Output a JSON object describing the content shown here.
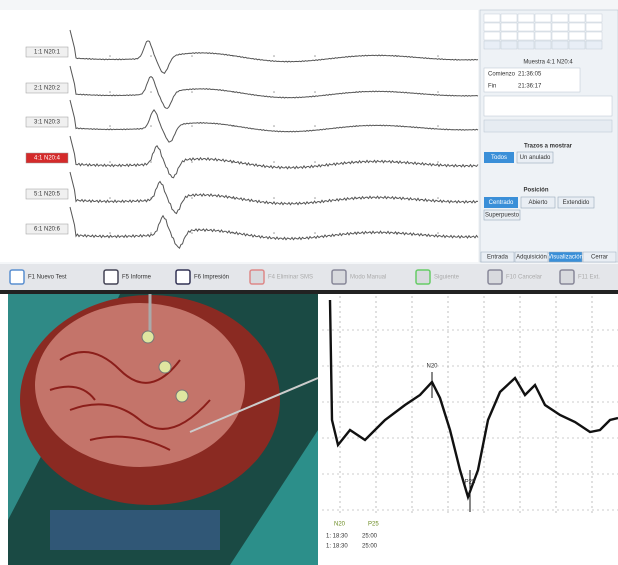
{
  "monitor": {
    "channels": [
      "1:1 N20:1",
      "2:1 N20:2",
      "3:1 N20:3",
      "4:1 N20:4",
      "5:1 N20:5",
      "6:1 N20:6"
    ],
    "toolbar": [
      "F1 Nuevo Test",
      "F5 Informe",
      "F6 Impresión",
      "F4 Eliminar SMS",
      "Modo Manual",
      "Siguiente",
      "F10 Cancelar",
      "F11 Ext."
    ],
    "side_panel": {
      "sample": "Muestra 4:1 N20:4",
      "start_label": "Comienzo",
      "start": "21:36:05",
      "end_label": "Fin",
      "end": "21:36:17",
      "traces_title": "Trazos a mostrar",
      "traces_all": "Todos",
      "traces_one": "Un anulado",
      "position_title": "Posición",
      "pos_centered": "Centrado",
      "pos_open": "Abierto",
      "pos_extended": "Extendido",
      "pos_overlap": "Superpuesto",
      "tabs": [
        "Entrada",
        "Adquisición",
        "Visualización",
        "Cerrar"
      ]
    }
  },
  "evoked_plot": {
    "peak_labels": [
      "N20",
      "P25"
    ],
    "table": {
      "header": [
        "N20",
        "P25"
      ],
      "rows": [
        [
          "1: 18:30",
          "25:00"
        ],
        [
          "1: 18:30",
          "25:00"
        ]
      ]
    }
  }
}
